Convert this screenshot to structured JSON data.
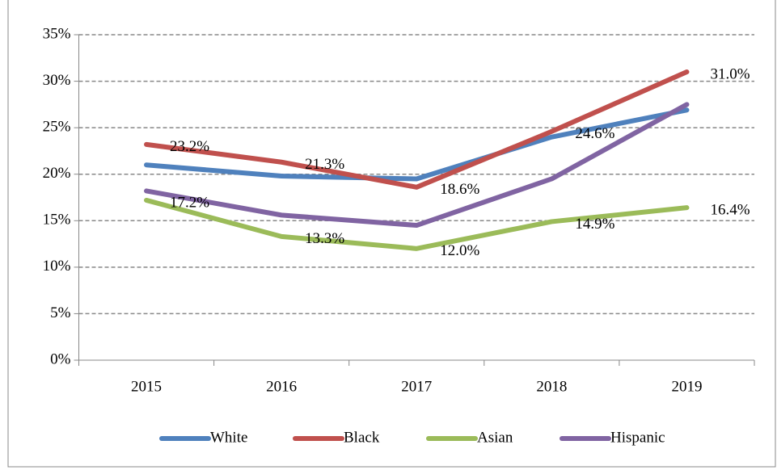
{
  "chart_data": {
    "type": "line",
    "categories": [
      "2015",
      "2016",
      "2017",
      "2018",
      "2019"
    ],
    "series": [
      {
        "name": "White",
        "color": "#4f81bd",
        "values": [
          21.0,
          19.8,
          19.5,
          24.0,
          26.9
        ]
      },
      {
        "name": "Black",
        "color": "#c0504d",
        "values": [
          23.2,
          21.3,
          18.6,
          24.6,
          31.0
        ],
        "value_labels": [
          "23.2%",
          "21.3%",
          "18.6%",
          "24.6%",
          "31.0%"
        ]
      },
      {
        "name": "Asian",
        "color": "#9bbb59",
        "values": [
          17.2,
          13.3,
          12.0,
          14.9,
          16.4
        ],
        "value_labels": [
          "17.2%",
          "13.3%",
          "12.0%",
          "14.9%",
          "16.4%"
        ]
      },
      {
        "name": "Hispanic",
        "color": "#8064a2",
        "values": [
          18.2,
          15.6,
          14.5,
          19.5,
          27.5
        ]
      }
    ],
    "ylim": [
      0,
      35
    ],
    "yticks": [
      {
        "value": 0,
        "label": "0%"
      },
      {
        "value": 5,
        "label": "5%"
      },
      {
        "value": 10,
        "label": "10%"
      },
      {
        "value": 15,
        "label": "15%"
      },
      {
        "value": 20,
        "label": "20%"
      },
      {
        "value": 25,
        "label": "25%"
      },
      {
        "value": 30,
        "label": "30%"
      },
      {
        "value": 35,
        "label": "35%"
      }
    ],
    "grid": true,
    "legend": "bottom"
  }
}
